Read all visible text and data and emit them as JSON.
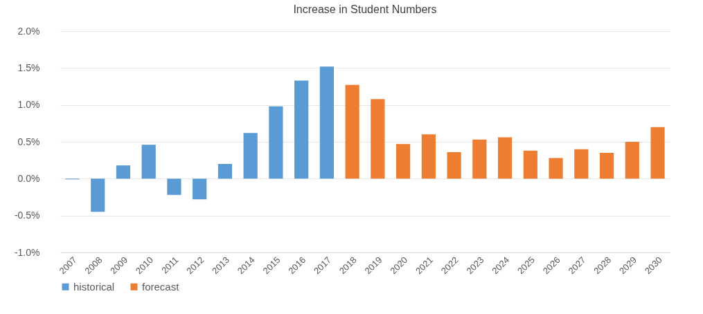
{
  "chart_data": {
    "type": "bar",
    "title": "Increase in Student Numbers",
    "categories": [
      "2007",
      "2008",
      "2009",
      "2010",
      "2011",
      "2012",
      "2013",
      "2014",
      "2015",
      "2016",
      "2017",
      "2018",
      "2019",
      "2020",
      "2021",
      "2022",
      "2023",
      "2024",
      "2025",
      "2026",
      "2027",
      "2028",
      "2029",
      "2030"
    ],
    "series": [
      {
        "name": "historical",
        "color": "#5b9bd5",
        "values": [
          -0.01,
          -0.45,
          0.18,
          0.46,
          -0.22,
          -0.28,
          0.2,
          0.62,
          0.98,
          1.33,
          1.52,
          null,
          null,
          null,
          null,
          null,
          null,
          null,
          null,
          null,
          null,
          null,
          null,
          null
        ]
      },
      {
        "name": "forecast",
        "color": "#ed7d31",
        "values": [
          null,
          null,
          null,
          null,
          null,
          null,
          null,
          null,
          null,
          null,
          null,
          1.27,
          1.08,
          0.47,
          0.6,
          0.36,
          0.53,
          0.56,
          0.38,
          0.28,
          0.4,
          0.35,
          0.5,
          0.7
        ]
      }
    ],
    "ylim": [
      -1.0,
      2.0
    ],
    "yticks": [
      {
        "value": -1.0,
        "label": "-1.0%"
      },
      {
        "value": -0.5,
        "label": "-0.5%"
      },
      {
        "value": 0,
        "label": "0.0%"
      },
      {
        "value": 0.5,
        "label": "0.5%"
      },
      {
        "value": 1.0,
        "label": "1.0%"
      },
      {
        "value": 1.5,
        "label": "1.5%"
      },
      {
        "value": 2.0,
        "label": "2.0%"
      }
    ],
    "grid": "y",
    "legend": "bottom"
  }
}
